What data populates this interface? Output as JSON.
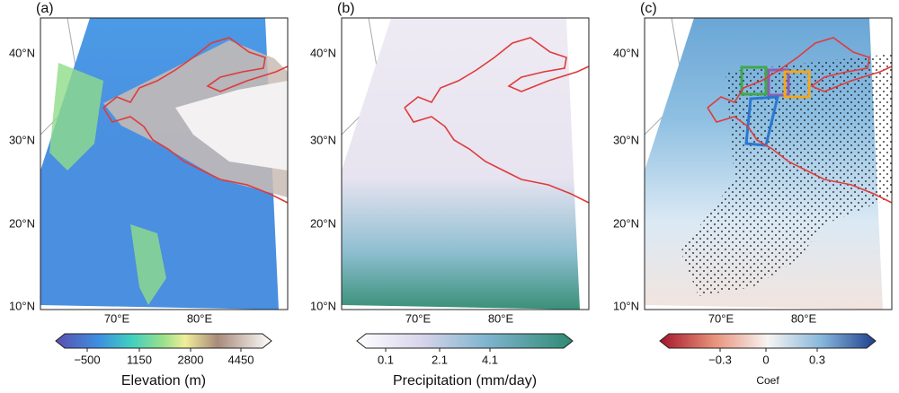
{
  "panels": [
    {
      "label": "(a)",
      "lat_labels": [
        "40°N",
        "30°N",
        "20°N",
        "10°N"
      ],
      "lon_labels": [
        "70°E",
        "80°E"
      ],
      "colorbar": {
        "ticks": [
          "−500",
          "1150",
          "2800",
          "4450"
        ],
        "label": "Elevation (m)"
      }
    },
    {
      "label": "(b)",
      "lat_labels": [
        "40°N",
        "30°N",
        "20°N",
        "10°N"
      ],
      "lon_labels": [
        "70°E",
        "80°E"
      ],
      "colorbar": {
        "ticks": [
          "0.1",
          "2.1",
          "4.1"
        ],
        "label": "Precipitation (mm/day)"
      }
    },
    {
      "label": "(c)",
      "lat_labels": [
        "40°N",
        "30°N",
        "20°N",
        "10°N"
      ],
      "lon_labels": [
        "70°E",
        "80°E"
      ],
      "colorbar": {
        "ticks": [
          "−0.3",
          "0",
          "0.3"
        ],
        "label": "Coef"
      }
    }
  ]
}
